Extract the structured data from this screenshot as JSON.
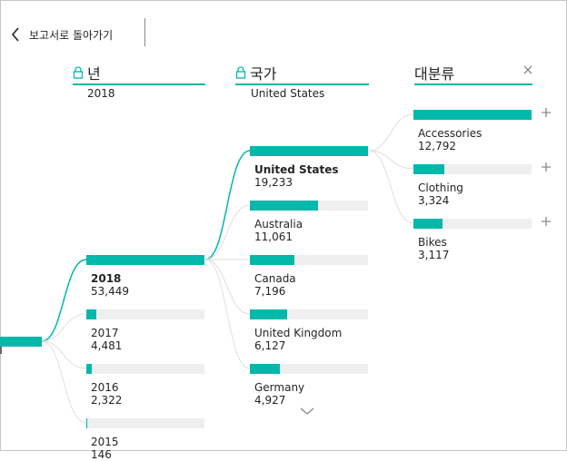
{
  "back": {
    "label": "보고서로 돌아가기"
  },
  "columns": [
    {
      "title": "년",
      "filter": "2018",
      "locked": true
    },
    {
      "title": "국가",
      "filter": "United States",
      "locked": true
    },
    {
      "title": "대분류",
      "filter": "",
      "locked": false
    }
  ],
  "levels": {
    "year": [
      {
        "label": "2018",
        "value": "53,449",
        "amount": 53449,
        "selected": true
      },
      {
        "label": "2017",
        "value": "4,481",
        "amount": 4481
      },
      {
        "label": "2016",
        "value": "2,322",
        "amount": 2322
      },
      {
        "label": "2015",
        "value": "146",
        "amount": 146
      }
    ],
    "country": [
      {
        "label": "United States",
        "value": "19,233",
        "amount": 19233,
        "selected": true
      },
      {
        "label": "Australia",
        "value": "11,061",
        "amount": 11061
      },
      {
        "label": "Canada",
        "value": "7,196",
        "amount": 7196
      },
      {
        "label": "United Kingdom",
        "value": "6,127",
        "amount": 6127
      },
      {
        "label": "Germany",
        "value": "4,927",
        "amount": 4927
      }
    ],
    "category": [
      {
        "label": "Accessories",
        "value": "12,792",
        "amount": 12792
      },
      {
        "label": "Clothing",
        "value": "3,324",
        "amount": 3324
      },
      {
        "label": "Bikes",
        "value": "3,117",
        "amount": 3117
      }
    ]
  },
  "colors": {
    "accent": "#01b8aa",
    "track": "#efefef"
  },
  "icons": {
    "back": "chevron-left-icon",
    "lock": "lock-icon",
    "close": "close-icon",
    "expand": "plus-icon",
    "more": "chevron-down-icon"
  }
}
